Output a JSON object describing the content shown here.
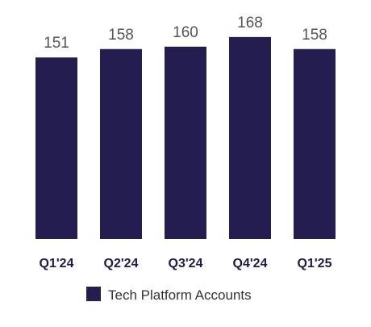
{
  "chart_data": {
    "type": "bar",
    "categories": [
      "Q1'24",
      "Q2'24",
      "Q3'24",
      "Q4'24",
      "Q1'25"
    ],
    "series": [
      {
        "name": "Tech Platform Accounts",
        "values": [
          151,
          158,
          160,
          168,
          158
        ]
      }
    ],
    "title": "",
    "xlabel": "",
    "ylabel": "",
    "grid": false,
    "legend_position": "bottom-center",
    "data_labels": true,
    "bar_color": "#231e4f"
  }
}
